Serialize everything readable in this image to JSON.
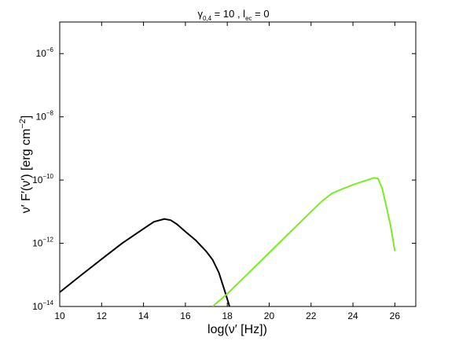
{
  "chart_data": {
    "type": "line",
    "title": {
      "gamma": "γ",
      "gamma_sub": "0,4",
      "mid": " = 10 , l",
      "l_sub": "ec",
      "end": " = 0"
    },
    "xlabel": "log(ν′ [Hz])",
    "ylabel": {
      "main": "ν′ F′(ν′) [erg cm",
      "sup": "−2",
      "end": "]"
    },
    "xlim": [
      10,
      27
    ],
    "ylim_log10": [
      -14,
      -5
    ],
    "y_scale": "log",
    "grid": false,
    "legend": "none",
    "x_ticks": [
      10,
      12,
      14,
      16,
      18,
      20,
      22,
      24,
      26
    ],
    "y_ticks": [
      {
        "base": "10",
        "exp": "−14",
        "value": -14
      },
      {
        "base": "10",
        "exp": "−12",
        "value": -12
      },
      {
        "base": "10",
        "exp": "−10",
        "value": -10
      },
      {
        "base": "10",
        "exp": "−8",
        "value": -8
      },
      {
        "base": "10",
        "exp": "−6",
        "value": -6
      }
    ],
    "series": [
      {
        "color": "#000000",
        "x": [
          10,
          11,
          12,
          13,
          14,
          14.5,
          15,
          15.3,
          15.6,
          16,
          16.5,
          17,
          17.3,
          17.6,
          17.9,
          18.1,
          18.3
        ],
        "log10_y": [
          -13.55,
          -13.02,
          -12.5,
          -11.99,
          -11.54,
          -11.32,
          -11.23,
          -11.27,
          -11.4,
          -11.63,
          -11.91,
          -12.26,
          -12.52,
          -12.93,
          -13.55,
          -13.98,
          -14.6
        ]
      },
      {
        "color": "#77ee22",
        "x": [
          17.3,
          18,
          19,
          20,
          21,
          22,
          22.5,
          23,
          23.5,
          24,
          24.5,
          25,
          25.2,
          25.4,
          25.6,
          25.8,
          26
        ],
        "log10_y": [
          -14,
          -13.6,
          -12.95,
          -12.3,
          -11.65,
          -11,
          -10.68,
          -10.42,
          -10.28,
          -10.15,
          -10.04,
          -9.93,
          -9.95,
          -10.28,
          -10.85,
          -11.45,
          -12.25
        ]
      }
    ]
  }
}
